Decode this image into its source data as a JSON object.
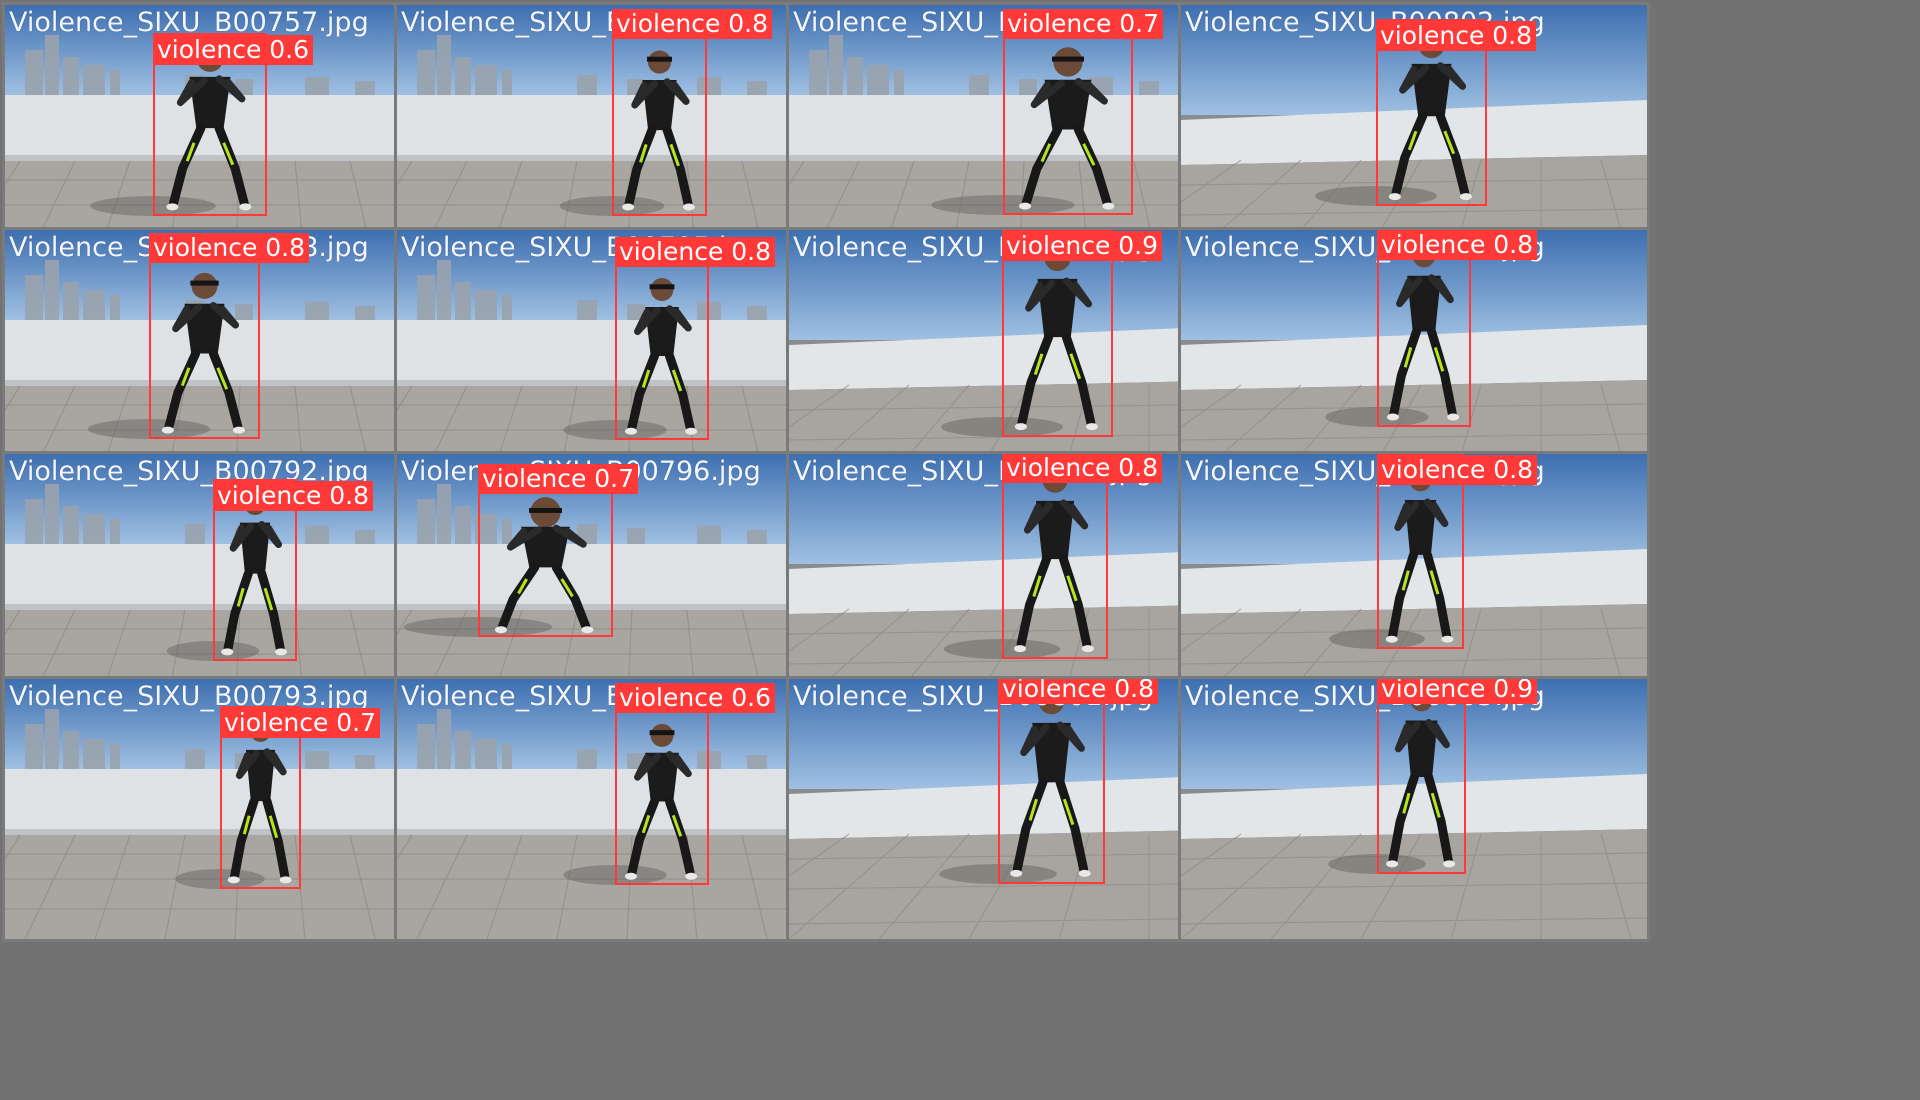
{
  "colors": {
    "background": "#727272",
    "box": "#ff3838",
    "filename_text": "#f4f6ff"
  },
  "grid": [
    [
      {
        "filename": "Violence_SIXU_B00757.jpg",
        "scene": "wall",
        "detection": {
          "label": "violence 0.6"
        }
      },
      {
        "filename": "Violence_SIXU_B00794.jpg",
        "scene": "wall",
        "detection": {
          "label": "violence 0.8"
        }
      },
      {
        "filename": "Violence_SIXU_B00798.jpg",
        "scene": "wall",
        "detection": {
          "label": "violence 0.7"
        }
      },
      {
        "filename": "Violence_SIXU_B00802.jpg",
        "scene": "roof",
        "detection": {
          "label": "violence 0.8"
        }
      }
    ],
    [
      {
        "filename": "Violence_SIXU_B00758.jpg",
        "scene": "wall",
        "detection": {
          "label": "violence 0.8"
        }
      },
      {
        "filename": "Violence_SIXU_B00795.jpg",
        "scene": "wall",
        "detection": {
          "label": "violence 0.8"
        }
      },
      {
        "filename": "Violence_SIXU_B00799.jpg",
        "scene": "roof",
        "detection": {
          "label": "violence 0.9"
        }
      },
      {
        "filename": "Violence_SIXU_B00803.jpg",
        "scene": "roof",
        "detection": {
          "label": "violence 0.8"
        }
      }
    ],
    [
      {
        "filename": "Violence_SIXU_B00792.jpg",
        "scene": "wall",
        "detection": {
          "label": "violence 0.8"
        }
      },
      {
        "filename": "Violence_SIXU_B00796.jpg",
        "scene": "wall",
        "detection": {
          "label": "violence 0.7"
        }
      },
      {
        "filename": "Violence_SIXU_B00800.jpg",
        "scene": "roof",
        "detection": {
          "label": "violence 0.8"
        }
      },
      {
        "filename": "Violence_SIXU_B00804.jpg",
        "scene": "roof",
        "detection": {
          "label": "violence 0.8"
        }
      }
    ],
    [
      {
        "filename": "Violence_SIXU_B00793.jpg",
        "scene": "wall",
        "detection": {
          "label": "violence 0.7"
        }
      },
      {
        "filename": "Violence_SIXU_B00797.jpg",
        "scene": "wall",
        "detection": {
          "label": "violence 0.6"
        }
      },
      {
        "filename": "Violence_SIXU_B00801.jpg",
        "scene": "roof",
        "detection": {
          "label": "violence 0.8"
        }
      },
      {
        "filename": "Violence_SIXU_B00805.jpg",
        "scene": "roof",
        "detection": {
          "label": "violence 0.9"
        }
      }
    ]
  ]
}
